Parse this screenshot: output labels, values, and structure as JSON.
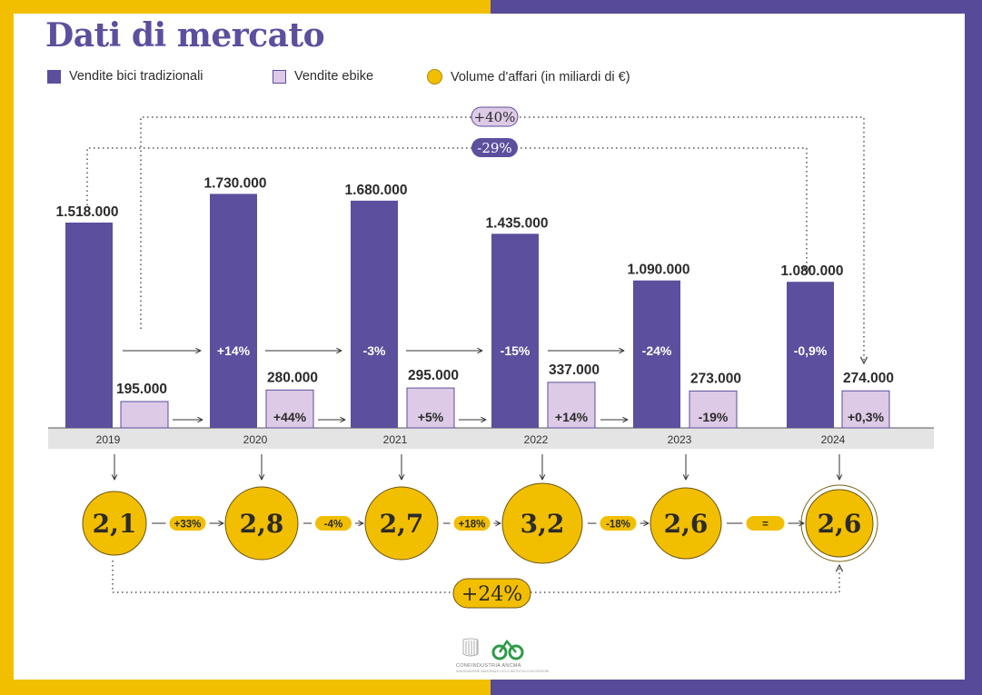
{
  "colors": {
    "purple": "#5b4f9e",
    "lilac": "#dccae6",
    "gold": "#f2be00",
    "frame_left": "#f2be00",
    "frame_right": "#574a99",
    "axis_band": "#e4e4e4",
    "text_dark": "#2b2b2b"
  },
  "title": "Dati di mercato",
  "legend": [
    {
      "label": "Vendite bici tradizionali",
      "icon": "purple-square"
    },
    {
      "label": "Vendite ebike",
      "icon": "lilac-square"
    },
    {
      "label": "Volume d'affari (in miliardi di €)",
      "icon": "gold-circle"
    }
  ],
  "chart_data": [
    {
      "type": "bar",
      "categories": [
        "2019",
        "2020",
        "2021",
        "2022",
        "2023",
        "2024"
      ],
      "series": [
        {
          "name": "Vendite bici tradizionali",
          "values": [
            1518000,
            1730000,
            1680000,
            1435000,
            1090000,
            1080000
          ],
          "value_labels": [
            "1.518.000",
            "1.730.000",
            "1.680.000",
            "1.435.000",
            "1.090.000",
            "1.080.000"
          ],
          "change_labels": [
            "",
            "+14%",
            "-3%",
            "-15%",
            "-24%",
            "-0,9%"
          ]
        },
        {
          "name": "Vendite ebike",
          "values": [
            195000,
            280000,
            295000,
            337000,
            273000,
            274000
          ],
          "value_labels": [
            "195.000",
            "280.000",
            "295.000",
            "337.000",
            "273.000",
            "274.000"
          ],
          "change_labels": [
            "",
            "+44%",
            "+5%",
            "+14%",
            "-19%",
            "+0,3%"
          ]
        }
      ],
      "ylim": [
        0,
        1800000
      ],
      "grid": false,
      "annotations": [
        {
          "label": "+40%",
          "from": "2019",
          "to": "2024",
          "series": "Vendite ebike"
        },
        {
          "label": "-29%",
          "from": "2019",
          "to": "2024",
          "series": "Vendite bici tradizionali"
        }
      ]
    },
    {
      "type": "scatter",
      "series": [
        {
          "name": "Volume d'affari (in miliardi di €)",
          "x": [
            "2019",
            "2020",
            "2021",
            "2022",
            "2023",
            "2024"
          ],
          "values": [
            2.1,
            2.8,
            2.7,
            3.2,
            2.6,
            2.6
          ],
          "value_labels": [
            "2,1",
            "2,8",
            "2,7",
            "3,2",
            "2,6",
            "2,6"
          ],
          "change_labels": [
            "+33%",
            "-4%",
            "+18%",
            "-18%",
            "="
          ]
        }
      ],
      "annotations": [
        {
          "label": "+24%",
          "from": "2019",
          "to": "2024"
        }
      ]
    }
  ],
  "footer": {
    "logo_confindustria": "CONFINDUSTRIA ANCMA",
    "logo_subtitle": "ASSOCIAZIONE NAZIONALE CICLO MOTOCICLO ACCESSORI"
  }
}
